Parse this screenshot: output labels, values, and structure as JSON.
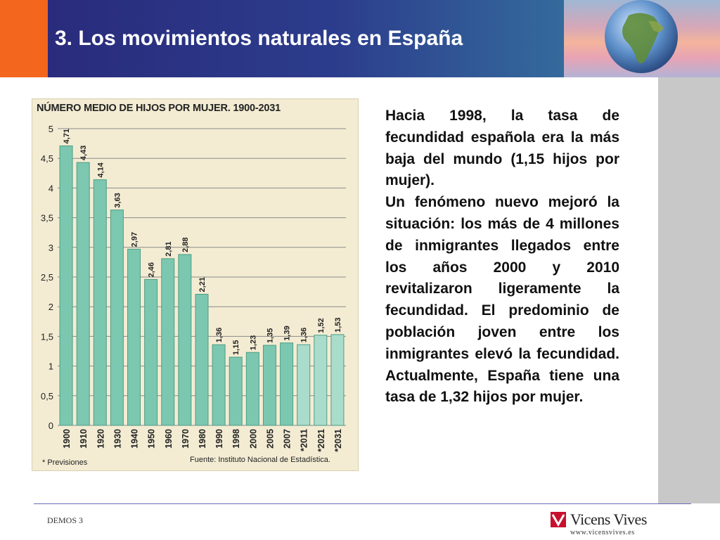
{
  "header": {
    "title": "3. Los movimientos naturales en España"
  },
  "chart_data": {
    "type": "bar",
    "title": "NÚMERO MEDIO DE HIJOS POR MUJER. 1900-2031",
    "categories": [
      "1900",
      "1910",
      "1920",
      "1930",
      "1940",
      "1950",
      "1960",
      "1970",
      "1980",
      "1990",
      "1998",
      "2000",
      "2005",
      "2007",
      "*2011",
      "*2021",
      "*2031"
    ],
    "values": [
      4.71,
      4.43,
      4.14,
      3.63,
      2.97,
      2.46,
      2.81,
      2.88,
      2.21,
      1.36,
      1.15,
      1.23,
      1.35,
      1.39,
      1.36,
      1.52,
      1.53
    ],
    "value_labels": [
      "4,71",
      "4,43",
      "4,14",
      "3,63",
      "2,97",
      "2,46",
      "2,81",
      "2,88",
      "2,21",
      "1,36",
      "1,15",
      "1,23",
      "1,35",
      "1,39",
      "1,36",
      "1,52",
      "1,53"
    ],
    "y_ticks": [
      "0",
      "0,5",
      "1",
      "1,5",
      "2",
      "2,5",
      "3",
      "3,5",
      "4",
      "4,5",
      "5"
    ],
    "ylim": [
      0,
      5
    ],
    "grid": true,
    "colors": {
      "bar": "#7cc7b0",
      "bar_forecast": "#aadccc",
      "bar_edge": "#4f9d86",
      "grid": "#8a8a8a"
    },
    "note": "* Previsiones",
    "source": "Fuente: Instituto Nacional de Estadística."
  },
  "body": {
    "paragraph1": "Hacia 1998, la tasa de fecundidad española era la más baja del mundo (1,15 hijos por mujer).",
    "paragraph2": "Un fenómeno nuevo mejoró la situación: los más de 4 millones de inmigrantes llegados entre los años 2000 y 2010 revitalizaron ligeramente la fecundidad. El predominio de población joven entre los inmigrantes elevó la fecundidad. Actualmente, España tiene una tasa de 1,32 hijos por mujer."
  },
  "footer": {
    "left_text": "DEMOS 3",
    "brand_name": "Vicens Vives",
    "brand_url": "www.vicensvives.es"
  },
  "colors": {
    "orange": "#f3661d",
    "header_blue": "#2a2b7c",
    "brand_red": "#c8102e"
  }
}
